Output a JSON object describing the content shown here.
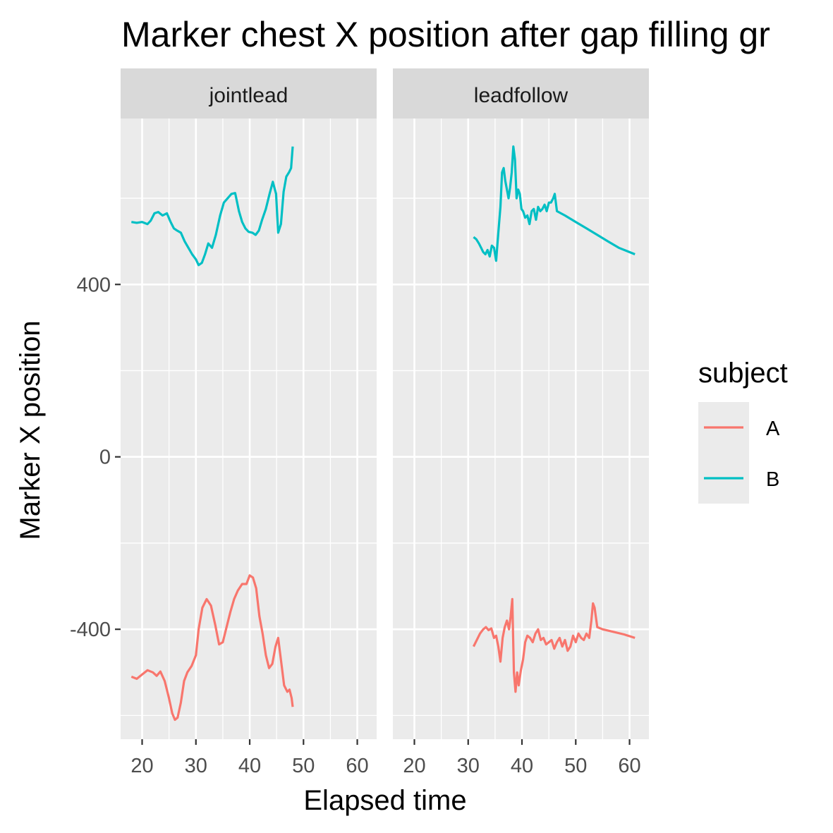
{
  "chart_data": {
    "type": "line",
    "title": "Marker chest X position after gap filling gr",
    "xlabel": "Elapsed time",
    "ylabel": "Marker X position",
    "xlim": [
      16,
      63.6
    ],
    "ylim": [
      -655,
      785
    ],
    "x_ticks": [
      20,
      30,
      40,
      50,
      60
    ],
    "y_ticks": [
      -400,
      0,
      400
    ],
    "x_minor": [
      25,
      35,
      45,
      55
    ],
    "y_minor": [
      -600,
      -200,
      200,
      600
    ],
    "grid": true,
    "legend": {
      "title": "subject",
      "position": "right",
      "entries": [
        {
          "label": "A",
          "color": "#F8766D"
        },
        {
          "label": "B",
          "color": "#00BFC4"
        }
      ]
    },
    "panels": [
      {
        "label": "jointlead",
        "series": [
          {
            "name": "A",
            "color": "#F8766D",
            "x": [
              18,
              19,
              20,
              21,
              22,
              22.7,
              23.4,
              24.2,
              25,
              25.6,
              26.1,
              26.6,
              27.2,
              27.8,
              28.4,
              29.2,
              30,
              30.5,
              31.2,
              32,
              32.8,
              33.6,
              34.3,
              35,
              35.7,
              36.4,
              37.1,
              37.8,
              38.6,
              39.4,
              40,
              40.6,
              41.2,
              41.8,
              42.4,
              43,
              43.6,
              44.2,
              44.8,
              45.3,
              45.9,
              46.4,
              47,
              47.4,
              47.8,
              48
            ],
            "y": [
              -510,
              -515,
              -505,
              -495,
              -500,
              -508,
              -498,
              -520,
              -560,
              -595,
              -610,
              -605,
              -570,
              -520,
              -500,
              -485,
              -460,
              -400,
              -350,
              -330,
              -345,
              -390,
              -435,
              -430,
              -395,
              -360,
              -330,
              -310,
              -295,
              -295,
              -275,
              -280,
              -305,
              -370,
              -410,
              -460,
              -490,
              -480,
              -440,
              -420,
              -480,
              -530,
              -545,
              -540,
              -560,
              -580
            ]
          },
          {
            "name": "B",
            "color": "#00BFC4",
            "x": [
              18,
              19,
              20,
              21,
              21.6,
              22.3,
              23,
              23.8,
              24.6,
              25.3,
              25.9,
              26.5,
              27.2,
              27.9,
              28.6,
              29.3,
              30,
              30.5,
              31.1,
              31.7,
              32.3,
              33,
              33.7,
              34.5,
              35.2,
              35.9,
              36.6,
              37.3,
              38,
              38.6,
              39.2,
              39.8,
              40.5,
              41.1,
              41.7,
              42.3,
              43,
              43.7,
              44.3,
              44.9,
              45.3,
              45.8,
              46.3,
              46.8,
              47.3,
              47.7,
              48
            ],
            "y": [
              545,
              543,
              545,
              540,
              548,
              565,
              568,
              560,
              565,
              545,
              530,
              525,
              520,
              500,
              485,
              470,
              458,
              445,
              450,
              470,
              495,
              485,
              515,
              560,
              590,
              600,
              610,
              612,
              570,
              545,
              530,
              522,
              520,
              515,
              525,
              550,
              575,
              610,
              638,
              610,
              520,
              540,
              615,
              650,
              660,
              670,
              720
            ]
          }
        ]
      },
      {
        "label": "leadfollow",
        "series": [
          {
            "name": "A",
            "color": "#F8766D",
            "x": [
              31,
              31.6,
              32.2,
              32.8,
              33.3,
              33.8,
              34.3,
              34.8,
              35.2,
              35.6,
              36,
              36.4,
              36.8,
              37.2,
              37.6,
              37.9,
              38.2,
              38.5,
              38.8,
              39.1,
              39.4,
              39.8,
              40.2,
              40.6,
              41,
              41.5,
              42,
              42.5,
              43,
              43.5,
              44,
              44.5,
              45,
              45.5,
              46,
              46.5,
              47,
              47.5,
              48,
              48.5,
              49,
              49.5,
              50,
              50.5,
              51,
              51.5,
              52,
              52.5,
              52.9,
              53.2,
              53.5,
              54,
              55,
              57,
              59,
              61
            ],
            "y": [
              -440,
              -425,
              -410,
              -400,
              -395,
              -402,
              -398,
              -420,
              -415,
              -440,
              -475,
              -420,
              -395,
              -380,
              -400,
              -370,
              -330,
              -500,
              -545,
              -500,
              -530,
              -495,
              -470,
              -430,
              -415,
              -420,
              -430,
              -410,
              -400,
              -425,
              -420,
              -435,
              -430,
              -425,
              -445,
              -430,
              -420,
              -440,
              -425,
              -450,
              -440,
              -415,
              -430,
              -410,
              -420,
              -425,
              -410,
              -420,
              -380,
              -340,
              -350,
              -395,
              -400,
              -406,
              -412,
              -420
            ]
          },
          {
            "name": "B",
            "color": "#00BFC4",
            "x": [
              31,
              31.5,
              32,
              32.4,
              32.8,
              33.2,
              33.6,
              34,
              34.4,
              34.8,
              35.2,
              35.6,
              36,
              36.3,
              36.6,
              36.9,
              37.2,
              37.5,
              37.8,
              38.1,
              38.4,
              38.7,
              39,
              39.3,
              39.6,
              39.9,
              40.2,
              40.6,
              41,
              41.4,
              41.8,
              42.2,
              42.6,
              43,
              43.4,
              43.8,
              44.2,
              44.6,
              45,
              45.4,
              45.8,
              46.1,
              46.5,
              48,
              50,
              52,
              54,
              56,
              58,
              61
            ],
            "y": [
              510,
              505,
              495,
              485,
              475,
              470,
              480,
              465,
              490,
              485,
              455,
              520,
              580,
              660,
              670,
              640,
              620,
              600,
              625,
              660,
              720,
              690,
              600,
              620,
              610,
              575,
              570,
              555,
              560,
              540,
              570,
              575,
              550,
              580,
              570,
              575,
              585,
              570,
              590,
              590,
              600,
              610,
              570,
              560,
              545,
              530,
              515,
              500,
              485,
              470
            ]
          }
        ]
      }
    ]
  }
}
